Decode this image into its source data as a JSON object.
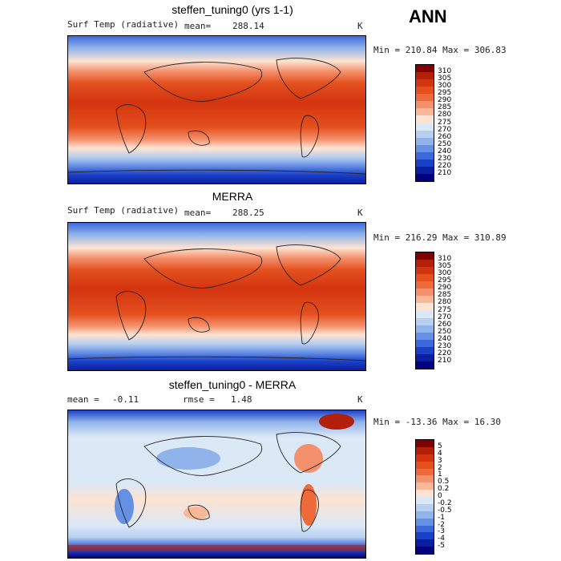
{
  "season": "ANN",
  "panels": [
    {
      "title": "steffen_tuning0 (yrs 1-1)",
      "left_label": "Surf Temp (radiative)",
      "stat_label": "mean=",
      "stat_value": "288.14",
      "units": "K",
      "minmax": "Min = 210.84 Max = 306.83"
    },
    {
      "title": "MERRA",
      "left_label": "Surf Temp (radiative)",
      "stat_label": "mean=",
      "stat_value": "288.25",
      "units": "K",
      "minmax": "Min = 216.29 Max = 310.89"
    },
    {
      "title": "steffen_tuning0 - MERRA",
      "left_label": "mean =",
      "left_value": "-0.11",
      "stat_label": "rmse =",
      "stat_value": "1.48",
      "units": "K",
      "minmax": "Min = -13.36 Max =  16.30"
    }
  ],
  "colorbar_abs": {
    "labels": [
      "310",
      "305",
      "300",
      "295",
      "290",
      "285",
      "280",
      "275",
      "270",
      "260",
      "250",
      "240",
      "230",
      "220",
      "210"
    ],
    "colors": [
      "#7f0000",
      "#b2200a",
      "#d3340f",
      "#e4501e",
      "#ef6a3a",
      "#f4906c",
      "#f9b898",
      "#fde3d2",
      "#dbe8f6",
      "#b8d0f0",
      "#8fb3ea",
      "#6690e4",
      "#3d68dc",
      "#1b40c8",
      "#0a1fa0",
      "#000080"
    ]
  },
  "colorbar_diff": {
    "labels": [
      "5",
      "4",
      "3",
      "2",
      "1",
      "0.5",
      "0.2",
      "0",
      "-0.2",
      "-0.5",
      "-1",
      "-2",
      "-3",
      "-4",
      "-5"
    ],
    "colors": [
      "#7f0000",
      "#b2200a",
      "#d3340f",
      "#e4501e",
      "#ef6a3a",
      "#f4906c",
      "#f9b898",
      "#fde3d2",
      "#dbe8f6",
      "#b8d0f0",
      "#8fb3ea",
      "#6690e4",
      "#3d68dc",
      "#1b40c8",
      "#0a1fa0",
      "#000080"
    ]
  }
}
